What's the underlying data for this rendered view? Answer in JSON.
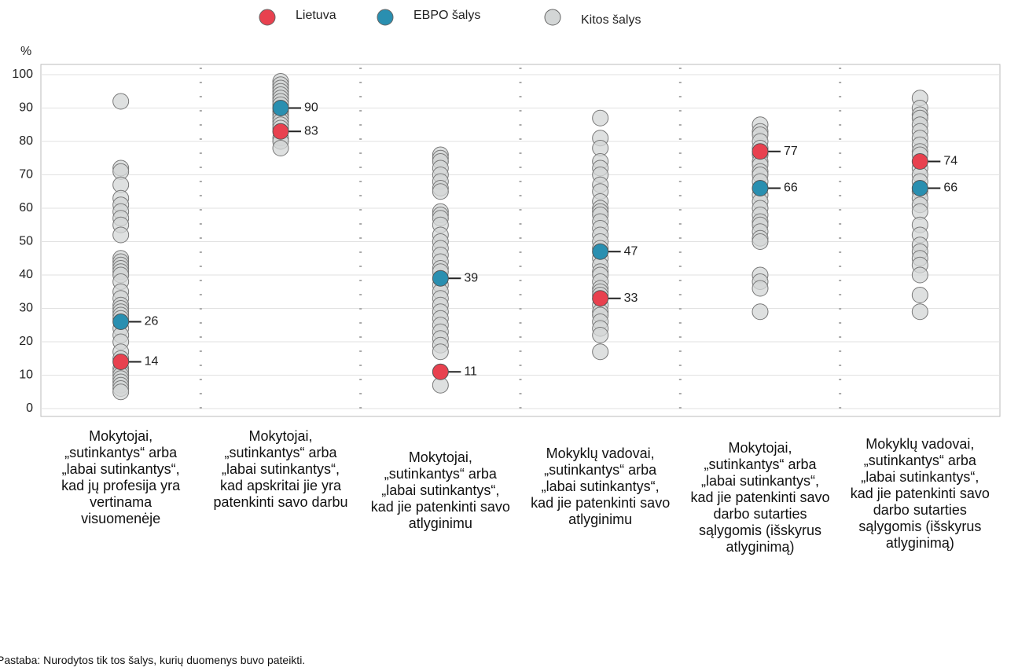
{
  "chart_data": {
    "type": "strip",
    "ylabel": "%",
    "categories": [
      "Mokytojai, „sutinkantys“ arba „labai sutinkantys“, kad jų profesija yra vertinama visuomenėje",
      "Mokytojai, „sutinkantys“ arba „labai sutinkantys“, kad apskritai jie yra patenkinti savo darbu",
      "Mokytojai, „sutinkantys“ arba „labai sutinkantys“, kad jie patenkinti savo atlyginimu",
      "Mokyklų vadovai, „sutinkantys“ arba „labai sutinkantys“, kad jie patenkinti savo atlyginimu",
      "Mokytojai, „sutinkantys“ arba „labai sutinkantys“, kad jie patenkinti savo darbo sutarties sąlygomis (išskyrus atlyginimą)",
      "Mokyklų vadovai, „sutinkantys“ arba „labai sutinkantys“, kad jie patenkinti savo darbo sutarties sąlygomis (išskyrus atlyginimą)"
    ],
    "series": [
      {
        "name": "Lietuva",
        "color": "#e8414f",
        "values": [
          14,
          83,
          11,
          33,
          77,
          74
        ]
      },
      {
        "name": "EBPO šalys",
        "color": "#2a8fb0",
        "values": [
          26,
          90,
          39,
          47,
          66,
          66
        ]
      },
      {
        "name": "Kitos šalys",
        "color": "#d3d6d6",
        "values": [
          [
            92,
            72,
            71,
            67,
            63,
            61,
            59,
            57,
            55,
            52,
            45,
            44,
            43,
            42,
            41,
            40,
            38,
            35,
            33,
            31,
            30,
            29,
            28,
            27,
            24,
            22,
            20,
            17,
            15,
            12,
            11,
            10,
            9,
            8,
            7,
            6,
            5
          ],
          [
            98,
            97,
            96,
            95,
            94,
            93,
            92,
            91,
            89,
            88,
            87,
            86,
            85,
            84,
            81,
            80,
            78
          ],
          [
            76,
            75,
            74,
            72,
            70,
            68,
            66,
            65,
            59,
            58,
            57,
            55,
            52,
            50,
            48,
            46,
            44,
            42,
            41,
            37,
            35,
            33,
            31,
            29,
            27,
            25,
            23,
            21,
            19,
            17,
            7
          ],
          [
            87,
            81,
            78,
            74,
            72,
            70,
            67,
            65,
            62,
            60,
            59,
            58,
            56,
            54,
            52,
            50,
            48,
            45,
            43,
            41,
            40,
            38,
            36,
            35,
            34,
            31,
            29,
            28,
            26,
            24,
            22,
            17
          ],
          [
            85,
            83,
            82,
            80,
            78,
            76,
            74,
            73,
            71,
            70,
            68,
            64,
            62,
            60,
            58,
            56,
            55,
            53,
            51,
            50,
            40,
            38,
            36,
            29
          ],
          [
            93,
            90,
            88,
            87,
            85,
            83,
            81,
            79,
            77,
            76,
            72,
            70,
            68,
            65,
            63,
            61,
            59,
            55,
            52,
            49,
            47,
            45,
            43,
            40,
            34,
            29
          ]
        ]
      }
    ],
    "ylim": [
      0,
      100
    ],
    "yticks": [
      0,
      10,
      20,
      30,
      40,
      50,
      60,
      70,
      80,
      90,
      100
    ],
    "grid": true,
    "legend": "top",
    "note": "Pastaba: Nurodytos tik tos šalys, kurių duomenys buvo pateikti."
  }
}
